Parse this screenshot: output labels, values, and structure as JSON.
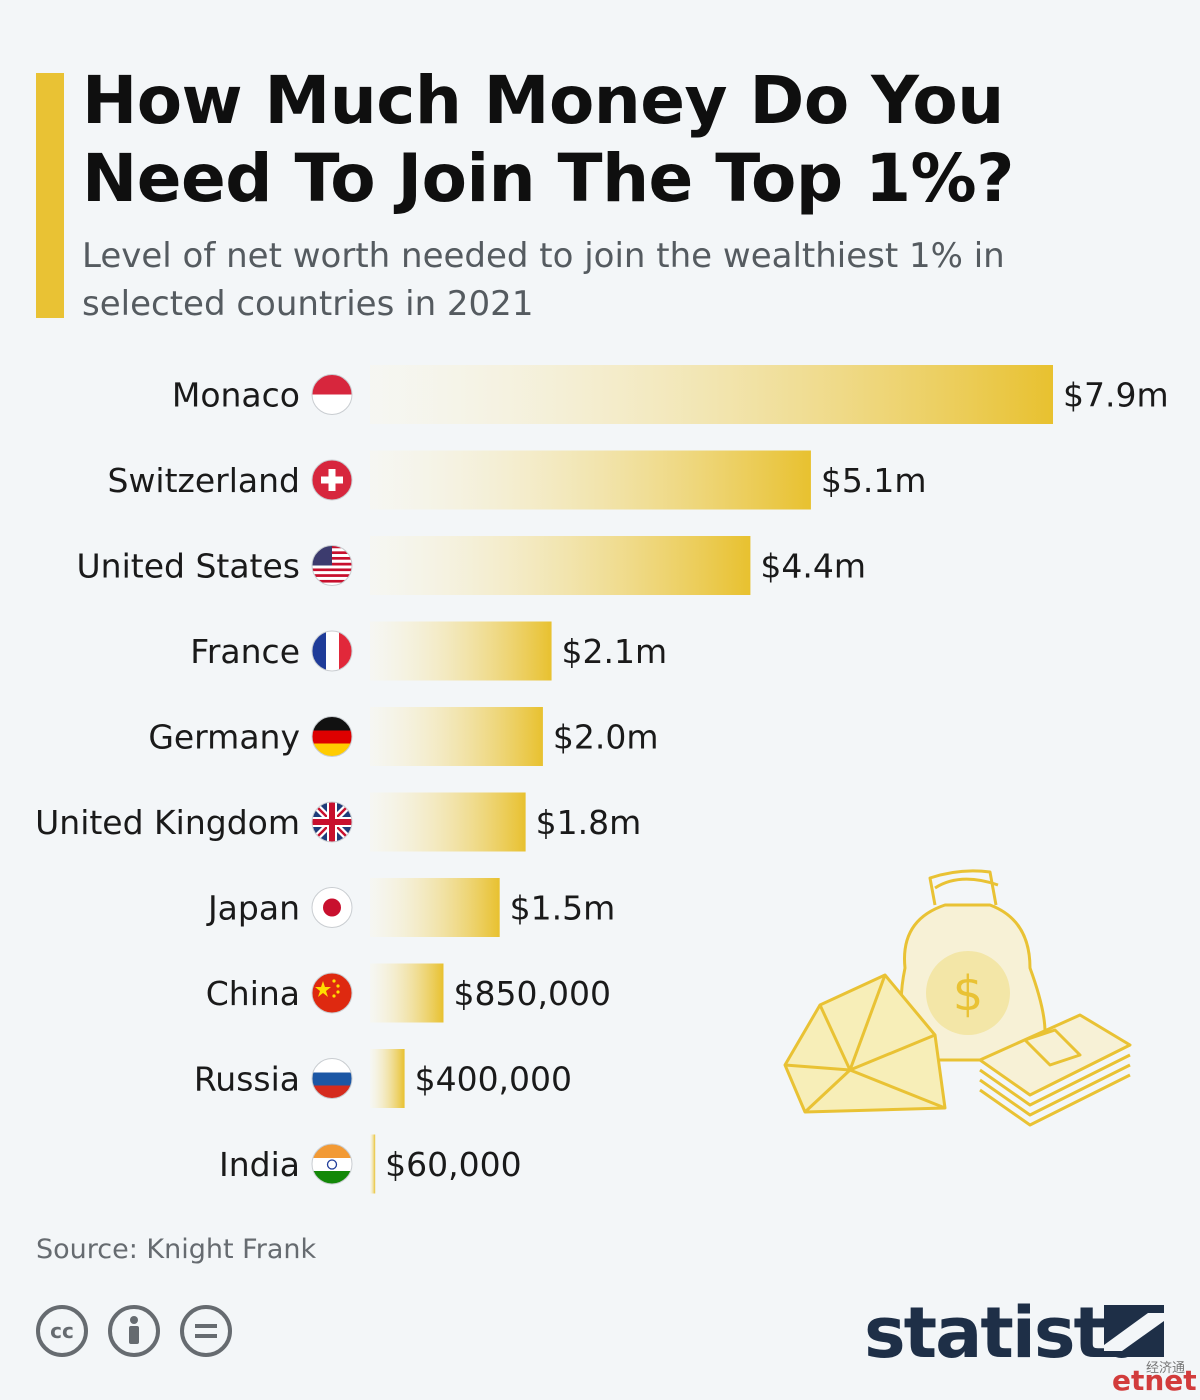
{
  "title": "How Much Money Do You Need To Join The Top 1%?",
  "subtitle": "Level of net worth needed to join the wealthiest 1% in selected countries in 2021",
  "source": "Source: Knight Frank",
  "brand": "statista",
  "watermark": "etnet",
  "watermark_cn": "经济通",
  "colors": {
    "accent": "#e9c234",
    "bar_light": "#faf5de",
    "bar_dark": "#e8c12f",
    "brand_navy": "#1e2f47"
  },
  "icons": [
    "cc-icon",
    "attribution-icon",
    "no-derivatives-icon",
    "money-bag-icon",
    "diamond-icon",
    "cash-stack-icon"
  ],
  "chart_data": {
    "type": "bar",
    "orientation": "horizontal",
    "categories": [
      "Monaco",
      "Switzerland",
      "United States",
      "France",
      "Germany",
      "United Kingdom",
      "Japan",
      "China",
      "Russia",
      "India"
    ],
    "values": [
      7900000,
      5100000,
      4400000,
      2100000,
      2000000,
      1800000,
      1500000,
      850000,
      400000,
      60000
    ],
    "value_labels": [
      "$7.9m",
      "$5.1m",
      "$4.4m",
      "$2.1m",
      "$2.0m",
      "$1.8m",
      "$1.5m",
      "$850,000",
      "$400,000",
      "$60,000"
    ],
    "flags": [
      "monaco-flag-icon",
      "switzerland-flag-icon",
      "united-states-flag-icon",
      "france-flag-icon",
      "germany-flag-icon",
      "united-kingdom-flag-icon",
      "japan-flag-icon",
      "china-flag-icon",
      "russia-flag-icon",
      "india-flag-icon"
    ],
    "unit": "USD",
    "xlim": [
      0,
      7900000
    ],
    "grid": false,
    "legend": "none"
  }
}
